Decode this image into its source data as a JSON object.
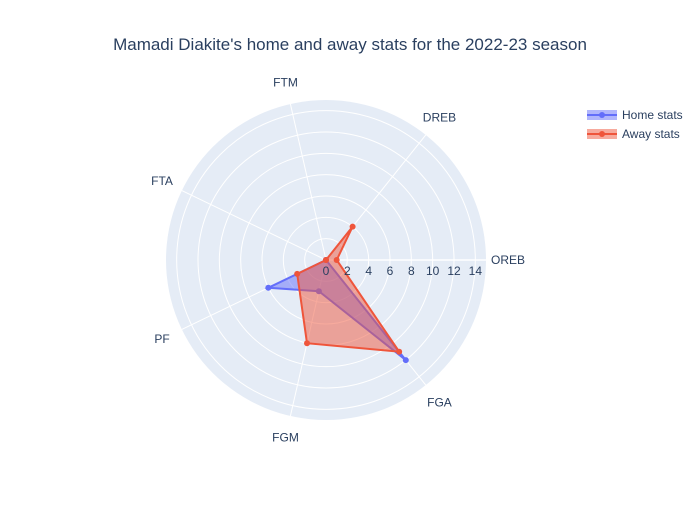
{
  "chart_data": {
    "type": "radar",
    "title": "Mamadi Diakite's home and away stats for the 2022-23 season",
    "categories": [
      "OREB",
      "DREB",
      "FTM",
      "FTA",
      "PF",
      "FGM",
      "FGA"
    ],
    "radial_range": [
      0,
      15
    ],
    "radial_ticks": [
      0,
      2,
      4,
      6,
      8,
      10,
      12,
      14
    ],
    "grid": true,
    "legend_position": "top-right",
    "series": [
      {
        "name": "Home stats",
        "color": "#636efa",
        "values": [
          0,
          0,
          0,
          0,
          6,
          3,
          12
        ]
      },
      {
        "name": "Away stats",
        "color": "#ef553b",
        "values": [
          1,
          4,
          0,
          0,
          3,
          8,
          11
        ]
      }
    ],
    "plot_background": "#e5ecf6"
  }
}
